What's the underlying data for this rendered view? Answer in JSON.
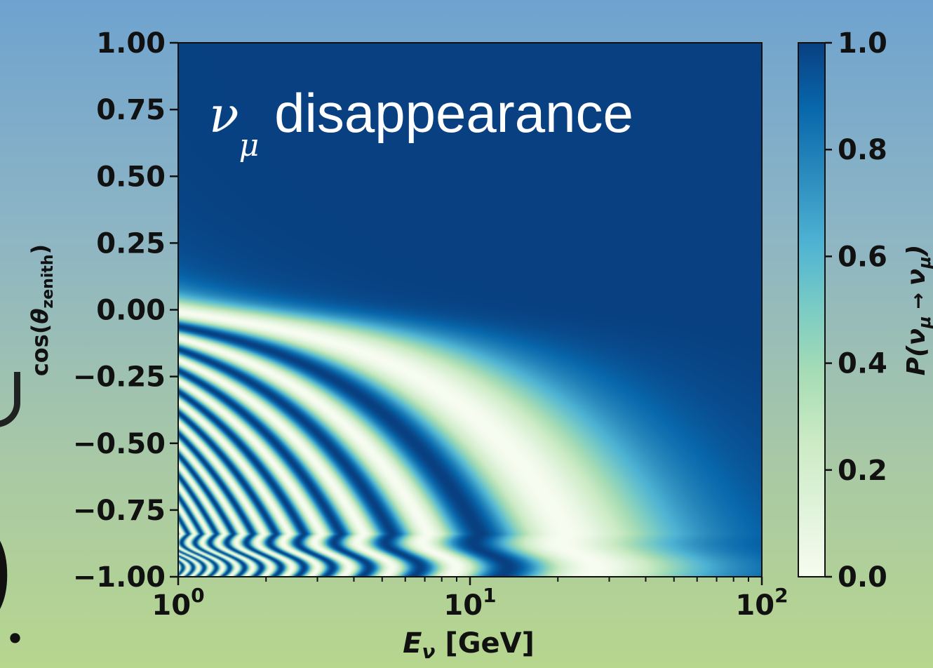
{
  "chart_data": {
    "type": "heatmap",
    "title": "",
    "annotation": {
      "symbol": "ν",
      "subscript": "μ",
      "text": "disappearance"
    },
    "xlabel": {
      "main": "E",
      "sub": "ν",
      "unit": " [GeV]"
    },
    "ylabel": {
      "main": "cos(",
      "theta": "θ",
      "sub": "zenith",
      "close": ")"
    },
    "colorbar_label": {
      "p": "P(",
      "nu1": "ν",
      "sub1": "μ",
      "arrow": " → ",
      "nu2": "ν",
      "sub2": "μ",
      "close": ")"
    },
    "x_scale": "log",
    "xlim": [
      1,
      100
    ],
    "x_ticks": [
      {
        "value": 1,
        "base": "10",
        "exp": "0"
      },
      {
        "value": 10,
        "base": "10",
        "exp": "1"
      },
      {
        "value": 100,
        "base": "10",
        "exp": "2"
      }
    ],
    "ylim": [
      -1.0,
      1.0
    ],
    "y_ticks": [
      {
        "value": 1.0,
        "label": "1.00"
      },
      {
        "value": 0.75,
        "label": "0.75"
      },
      {
        "value": 0.5,
        "label": "0.50"
      },
      {
        "value": 0.25,
        "label": "0.25"
      },
      {
        "value": 0.0,
        "label": "0.00"
      },
      {
        "value": -0.25,
        "label": "−0.25"
      },
      {
        "value": -0.5,
        "label": "−0.50"
      },
      {
        "value": -0.75,
        "label": "−0.75"
      },
      {
        "value": -1.0,
        "label": "−1.00"
      }
    ],
    "colorbar_range": [
      0.0,
      1.0
    ],
    "colorbar_ticks": [
      {
        "value": 1.0,
        "label": "1.0"
      },
      {
        "value": 0.8,
        "label": "0.8"
      },
      {
        "value": 0.6,
        "label": "0.6"
      },
      {
        "value": 0.4,
        "label": "0.4"
      },
      {
        "value": 0.2,
        "label": "0.2"
      },
      {
        "value": 0.0,
        "label": "0.0"
      }
    ],
    "colormap": [
      "#f7fcf0",
      "#e0f3db",
      "#ccebc5",
      "#a8ddb5",
      "#7bccc4",
      "#4eb3d3",
      "#2b8cbe",
      "#0868ac",
      "#084081"
    ],
    "grid": false,
    "legend": "none"
  },
  "background_glyphs": {
    "paren": ")",
    "dot": "."
  }
}
